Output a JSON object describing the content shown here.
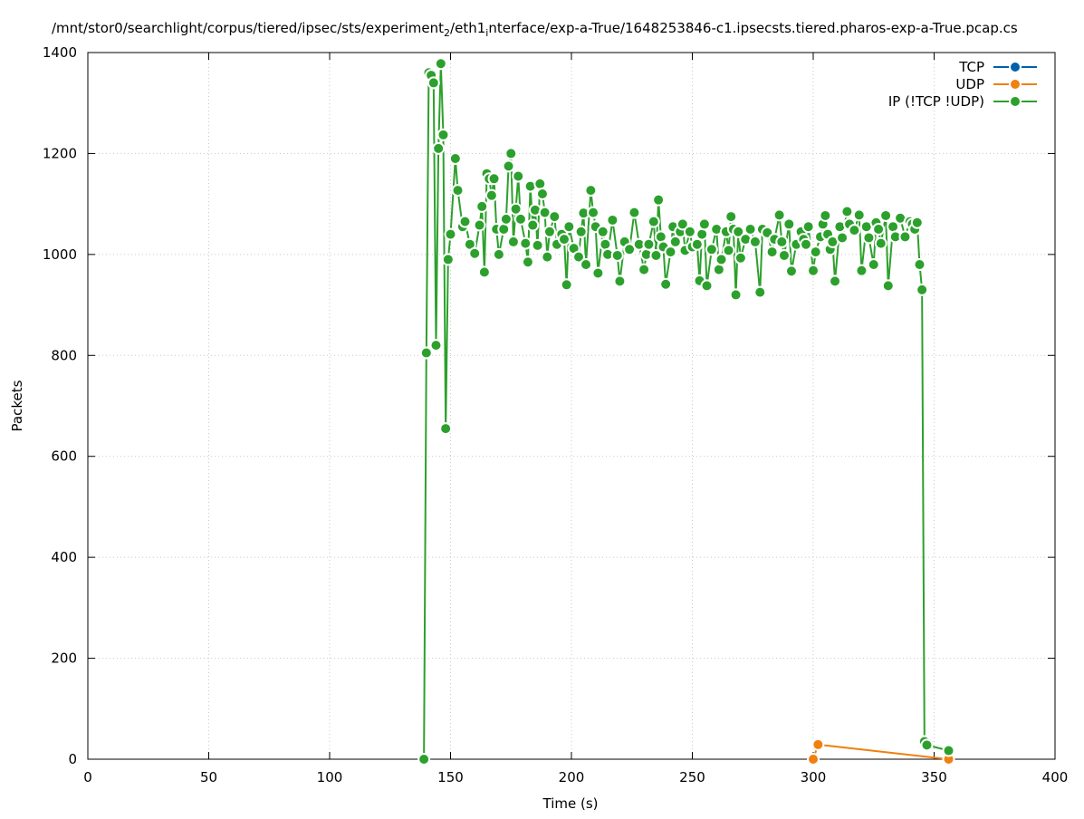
{
  "chart_data": {
    "type": "line",
    "title_parts": [
      "/mnt/stor0/searchlight/corpus/tiered/ipsec/sts/experiment",
      "2",
      "/eth1",
      "i",
      "nterface/exp-a-True/1648253846-c1.ipsecsts.tiered.pharos-exp-a-True.pcap.cs"
    ],
    "x_label": "Time (s)",
    "y_label": "Packets",
    "xlim": [
      0,
      400
    ],
    "ylim": [
      0,
      1400
    ],
    "xticks": [
      0,
      50,
      100,
      150,
      200,
      250,
      300,
      350,
      400
    ],
    "yticks": [
      0,
      200,
      400,
      600,
      800,
      1000,
      1200,
      1400
    ],
    "grid": true,
    "legend": "top-right",
    "series": [
      {
        "name": "TCP",
        "color": "#0060ad",
        "x": [],
        "values": []
      },
      {
        "name": "UDP",
        "color": "#f0800f",
        "x": [
          300,
          302,
          356
        ],
        "values": [
          0,
          29,
          0
        ]
      },
      {
        "name": "IP (!TCP  !UDP)",
        "color": "#2ca02c",
        "x": [
          139,
          140,
          141,
          142,
          143,
          144,
          145,
          146,
          147,
          148,
          149,
          150,
          152,
          153,
          155,
          156,
          158,
          160,
          162,
          163,
          164,
          165,
          166,
          167,
          168,
          169,
          170,
          172,
          173,
          174,
          175,
          176,
          177,
          178,
          179,
          181,
          182,
          183,
          184,
          185,
          186,
          187,
          188,
          189,
          190,
          191,
          193,
          194,
          196,
          197,
          198,
          199,
          201,
          203,
          204,
          205,
          206,
          208,
          209,
          210,
          211,
          213,
          214,
          215,
          217,
          219,
          220,
          222,
          224,
          226,
          228,
          230,
          231,
          232,
          234,
          235,
          236,
          237,
          238,
          239,
          241,
          242,
          243,
          245,
          246,
          247,
          249,
          250,
          252,
          253,
          254,
          255,
          256,
          258,
          260,
          261,
          262,
          264,
          265,
          266,
          267,
          268,
          269,
          270,
          272,
          274,
          276,
          278,
          279,
          281,
          283,
          284,
          286,
          287,
          288,
          290,
          291,
          293,
          295,
          296,
          297,
          298,
          300,
          301,
          303,
          304,
          305,
          306,
          307,
          308,
          309,
          311,
          312,
          314,
          315,
          317,
          319,
          320,
          322,
          323,
          325,
          326,
          327,
          328,
          330,
          331,
          333,
          334,
          336,
          338,
          340,
          341,
          342,
          343,
          344,
          345,
          346,
          347,
          356
        ],
        "values": [
          0,
          805,
          1360,
          1355,
          1340,
          820,
          1210,
          1378,
          1237,
          655,
          990,
          1040,
          1190,
          1127,
          1055,
          1065,
          1020,
          1002,
          1058,
          1095,
          965,
          1160,
          1150,
          1117,
          1150,
          1050,
          1000,
          1050,
          1070,
          1175,
          1200,
          1025,
          1090,
          1155,
          1070,
          1022,
          985,
          1135,
          1058,
          1088,
          1018,
          1140,
          1120,
          1083,
          995,
          1045,
          1075,
          1020,
          1040,
          1030,
          940,
          1055,
          1012,
          995,
          1045,
          1082,
          980,
          1127,
          1083,
          1055,
          963,
          1045,
          1020,
          1000,
          1068,
          998,
          947,
          1025,
          1010,
          1083,
          1020,
          970,
          1000,
          1020,
          1065,
          998,
          1108,
          1035,
          1015,
          941,
          1005,
          1055,
          1025,
          1045,
          1060,
          1008,
          1045,
          1015,
          1020,
          948,
          1040,
          1060,
          938,
          1010,
          1050,
          970,
          990,
          1045,
          1008,
          1075,
          1050,
          920,
          1045,
          993,
          1030,
          1050,
          1025,
          925,
          1050,
          1043,
          1005,
          1030,
          1078,
          1025,
          998,
          1060,
          967,
          1020,
          1045,
          1030,
          1020,
          1055,
          968,
          1005,
          1035,
          1060,
          1077,
          1040,
          1010,
          1025,
          947,
          1055,
          1033,
          1085,
          1060,
          1048,
          1078,
          968,
          1055,
          1033,
          980,
          1063,
          1050,
          1022,
          1077,
          938,
          1055,
          1035,
          1072,
          1035,
          1065,
          1060,
          1050,
          1063,
          980,
          930,
          35,
          28,
          17
        ]
      }
    ]
  }
}
